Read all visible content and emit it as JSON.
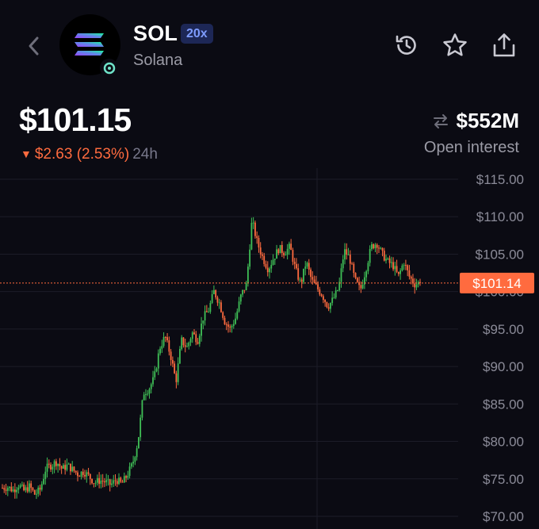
{
  "header": {
    "symbol": "SOL",
    "leverage": "20x",
    "name": "Solana"
  },
  "price": {
    "current": "$101.15",
    "change_amount": "$2.63",
    "change_percent": "(2.53%)",
    "period": "24h",
    "direction": "down"
  },
  "open_interest": {
    "value": "$552M",
    "label": "Open interest"
  },
  "colors": {
    "background": "#0b0b13",
    "up": "#3fbf56",
    "down": "#ff6b3f",
    "price_line": "#ff6b3f",
    "leverage_badge_bg": "#1d2756",
    "leverage_badge_text": "#7e9cff"
  },
  "icons": [
    "chevron-left-icon",
    "solana-logo",
    "status-dot-icon",
    "history-icon",
    "star-icon",
    "share-icon",
    "swap-arrows-icon"
  ],
  "chart_data": {
    "type": "candlestick",
    "y_axis_labels": [
      "$115.00",
      "$110.00",
      "$105.00",
      "$100.00",
      "$95.00",
      "$90.00",
      "$85.00",
      "$80.00",
      "$75.00",
      "$70.00"
    ],
    "ylim": [
      70,
      115
    ],
    "current_price_label": "$101.14",
    "current_price": 101.14,
    "grid": true,
    "approx_close_path": [
      73.8,
      73.9,
      73.5,
      74.2,
      73.4,
      74.0,
      72.9,
      73.6,
      76.4,
      76.8,
      77.3,
      76.3,
      76.8,
      76.2,
      75.6,
      76.0,
      75.3,
      74.5,
      74.8,
      74.6,
      74.2,
      74.9,
      74.3,
      75.5,
      77.0,
      80.0,
      86.5,
      87.0,
      88.5,
      92.5,
      94.0,
      91.5,
      88.0,
      93.5,
      92.5,
      94.5,
      93.5,
      96.5,
      97.5,
      100.0,
      98.5,
      96.0,
      95.0,
      96.5,
      99.5,
      101.0,
      109.5,
      106.5,
      104.5,
      103.0,
      104.5,
      105.8,
      105.2,
      106.0,
      103.0,
      101.0,
      104.0,
      101.5,
      100.5,
      99.5,
      98.0,
      99.0,
      100.5,
      105.5,
      104.5,
      101.5,
      100.2,
      103.0,
      106.0,
      106.5,
      105.0,
      104.0,
      103.5,
      102.0,
      104.0,
      102.0,
      101.0,
      101.2
    ]
  }
}
